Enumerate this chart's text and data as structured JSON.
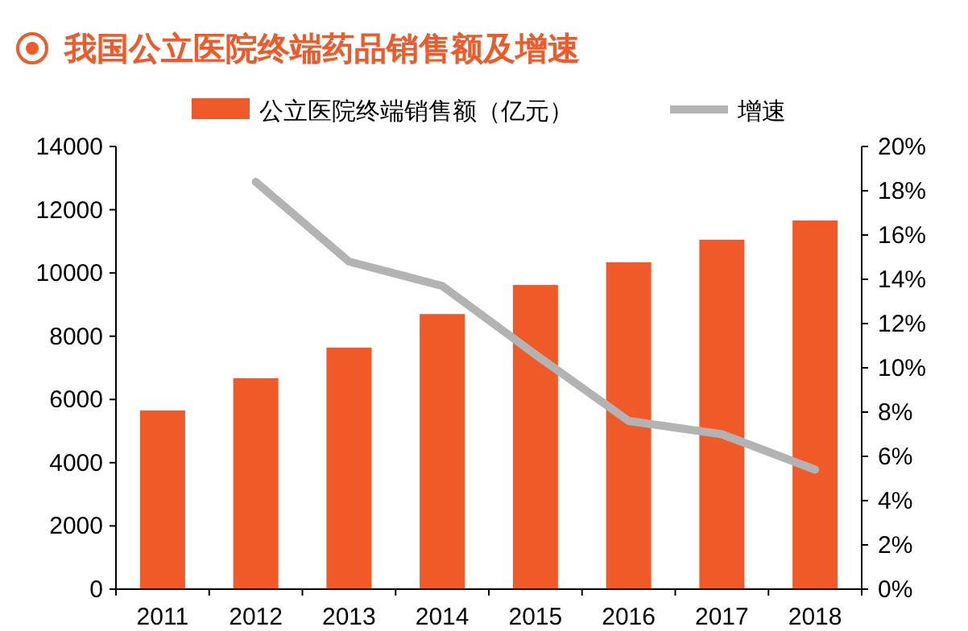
{
  "chart_data": {
    "type": "bar",
    "title": "我国公立医院终端药品销售额及增速",
    "categories": [
      "2011",
      "2012",
      "2013",
      "2014",
      "2015",
      "2016",
      "2017",
      "2018"
    ],
    "series": [
      {
        "name": "公立医院终端销售额（亿元）",
        "color": "#f05a28",
        "values": [
          5650,
          6670,
          7640,
          8700,
          9620,
          10340,
          11050,
          11660
        ]
      },
      {
        "name": "增速",
        "type": "line",
        "axis": "y2",
        "color": "#b3b3b3",
        "values": [
          null,
          18.4,
          14.8,
          13.7,
          10.6,
          7.6,
          7.0,
          5.4
        ]
      }
    ],
    "ylim": [
      0,
      14000
    ],
    "yticks": [
      0,
      2000,
      4000,
      6000,
      8000,
      10000,
      12000,
      14000
    ],
    "y2lim": [
      0,
      20
    ],
    "y2ticks": [
      {
        "value": 0,
        "label": "0%"
      },
      {
        "value": 2,
        "label": "2%"
      },
      {
        "value": 4,
        "label": "4%"
      },
      {
        "value": 6,
        "label": "6%"
      },
      {
        "value": 8,
        "label": "8%"
      },
      {
        "value": 10,
        "label": "10%"
      },
      {
        "value": 12,
        "label": "12%"
      },
      {
        "value": 14,
        "label": "14%"
      },
      {
        "value": 16,
        "label": "16%"
      },
      {
        "value": 18,
        "label": "18%"
      },
      {
        "value": 20,
        "label": "20%"
      }
    ],
    "legend": "top",
    "grid": false,
    "marker": "none",
    "line_style": "solid"
  }
}
